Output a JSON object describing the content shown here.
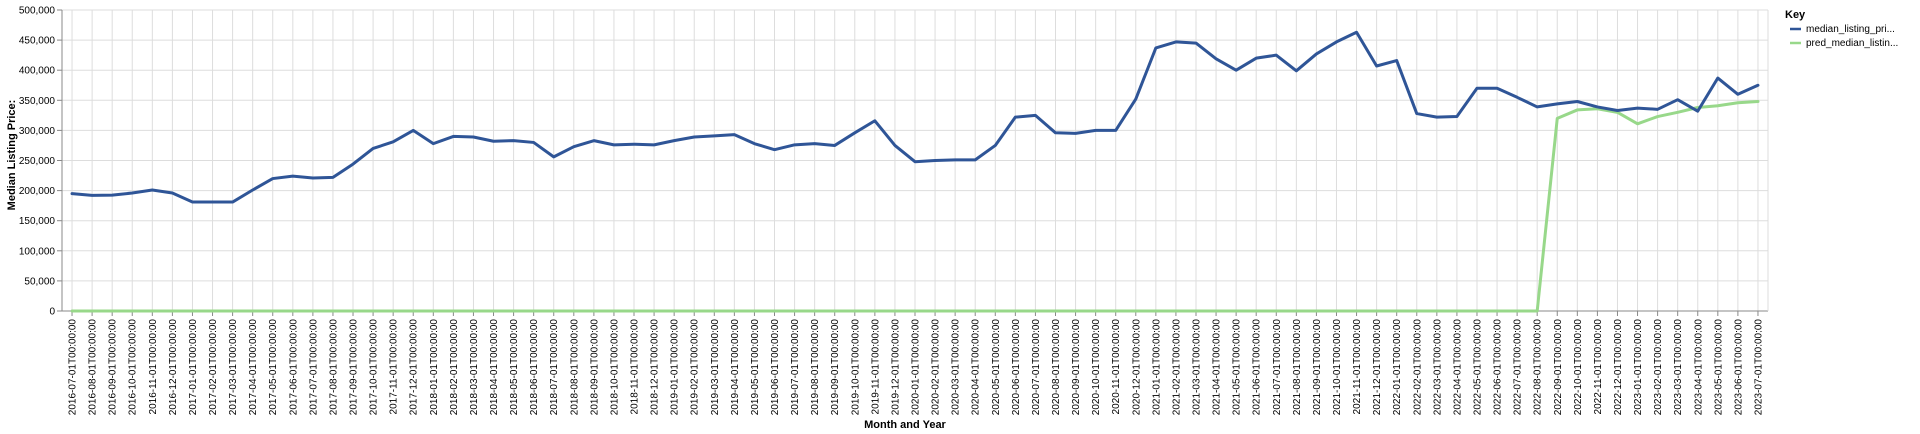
{
  "chart_data": {
    "type": "line",
    "xlabel": "Month and Year",
    "ylabel": "Median Listing Price:",
    "ylim": [
      0,
      500000
    ],
    "yticks": [
      "0",
      "50,000",
      "100,000",
      "150,000",
      "200,000",
      "250,000",
      "300,000",
      "350,000",
      "400,000",
      "450,000",
      "500,000"
    ],
    "grid": true,
    "legend": {
      "title": "Key",
      "placement": "top-right"
    },
    "x": [
      "2016-07-01T00:00:00",
      "2016-08-01T00:00:00",
      "2016-09-01T00:00:00",
      "2016-10-01T00:00:00",
      "2016-11-01T00:00:00",
      "2016-12-01T00:00:00",
      "2017-01-01T00:00:00",
      "2017-02-01T00:00:00",
      "2017-03-01T00:00:00",
      "2017-04-01T00:00:00",
      "2017-05-01T00:00:00",
      "2017-06-01T00:00:00",
      "2017-07-01T00:00:00",
      "2017-08-01T00:00:00",
      "2017-09-01T00:00:00",
      "2017-10-01T00:00:00",
      "2017-11-01T00:00:00",
      "2017-12-01T00:00:00",
      "2018-01-01T00:00:00",
      "2018-02-01T00:00:00",
      "2018-03-01T00:00:00",
      "2018-04-01T00:00:00",
      "2018-05-01T00:00:00",
      "2018-06-01T00:00:00",
      "2018-07-01T00:00:00",
      "2018-08-01T00:00:00",
      "2018-09-01T00:00:00",
      "2018-10-01T00:00:00",
      "2018-11-01T00:00:00",
      "2018-12-01T00:00:00",
      "2019-01-01T00:00:00",
      "2019-02-01T00:00:00",
      "2019-03-01T00:00:00",
      "2019-04-01T00:00:00",
      "2019-05-01T00:00:00",
      "2019-06-01T00:00:00",
      "2019-07-01T00:00:00",
      "2019-08-01T00:00:00",
      "2019-09-01T00:00:00",
      "2019-10-01T00:00:00",
      "2019-11-01T00:00:00",
      "2019-12-01T00:00:00",
      "2020-01-01T00:00:00",
      "2020-02-01T00:00:00",
      "2020-03-01T00:00:00",
      "2020-04-01T00:00:00",
      "2020-05-01T00:00:00",
      "2020-06-01T00:00:00",
      "2020-07-01T00:00:00",
      "2020-08-01T00:00:00",
      "2020-09-01T00:00:00",
      "2020-10-01T00:00:00",
      "2020-11-01T00:00:00",
      "2020-12-01T00:00:00",
      "2021-01-01T00:00:00",
      "2021-02-01T00:00:00",
      "2021-03-01T00:00:00",
      "2021-04-01T00:00:00",
      "2021-05-01T00:00:00",
      "2021-06-01T00:00:00",
      "2021-07-01T00:00:00",
      "2021-08-01T00:00:00",
      "2021-09-01T00:00:00",
      "2021-10-01T00:00:00",
      "2021-11-01T00:00:00",
      "2021-12-01T00:00:00",
      "2022-01-01T00:00:00",
      "2022-02-01T00:00:00",
      "2022-03-01T00:00:00",
      "2022-04-01T00:00:00",
      "2022-05-01T00:00:00",
      "2022-06-01T00:00:00",
      "2022-07-01T00:00:00",
      "2022-08-01T00:00:00",
      "2022-09-01T00:00:00",
      "2022-10-01T00:00:00",
      "2022-11-01T00:00:00",
      "2022-12-01T00:00:00",
      "2023-01-01T00:00:00",
      "2023-02-01T00:00:00",
      "2023-03-01T00:00:00",
      "2023-04-01T00:00:00",
      "2023-05-01T00:00:00",
      "2023-06-01T00:00:00",
      "2023-07-01T00:00:00"
    ],
    "series": [
      {
        "name": "median_listing_pri...",
        "color": "#2f5597",
        "values": [
          195000,
          192000,
          192500,
          196000,
          201000,
          196000,
          181000,
          181000,
          181000,
          201000,
          220000,
          224000,
          221000,
          222000,
          244000,
          270000,
          281000,
          300000,
          278000,
          290000,
          289000,
          282000,
          283000,
          280000,
          256000,
          273000,
          283000,
          276000,
          277000,
          276000,
          283000,
          289000,
          291000,
          293000,
          278000,
          268000,
          276000,
          278000,
          275000,
          296000,
          316000,
          275000,
          248000,
          250000,
          251000,
          251000,
          275000,
          322000,
          325000,
          296000,
          295000,
          300000,
          300000,
          352000,
          437000,
          447000,
          445000,
          419000,
          400000,
          420000,
          425000,
          399000,
          427000,
          447000,
          463000,
          407000,
          416000,
          328000,
          322000,
          323000,
          370000,
          370000,
          355000,
          339000,
          344000,
          348000,
          339000,
          333000,
          337000,
          335000,
          351000,
          332000,
          387000,
          360000,
          375000
        ]
      },
      {
        "name": "pred_median_listin...",
        "color": "#98d88a",
        "values": [
          0,
          0,
          0,
          0,
          0,
          0,
          0,
          0,
          0,
          0,
          0,
          0,
          0,
          0,
          0,
          0,
          0,
          0,
          0,
          0,
          0,
          0,
          0,
          0,
          0,
          0,
          0,
          0,
          0,
          0,
          0,
          0,
          0,
          0,
          0,
          0,
          0,
          0,
          0,
          0,
          0,
          0,
          0,
          0,
          0,
          0,
          0,
          0,
          0,
          0,
          0,
          0,
          0,
          0,
          0,
          0,
          0,
          0,
          0,
          0,
          0,
          0,
          0,
          0,
          0,
          0,
          0,
          0,
          0,
          0,
          0,
          0,
          0,
          0,
          320000,
          334000,
          336000,
          330000,
          311000,
          323000,
          330000,
          338000,
          341000,
          346000,
          348000
        ]
      }
    ]
  }
}
